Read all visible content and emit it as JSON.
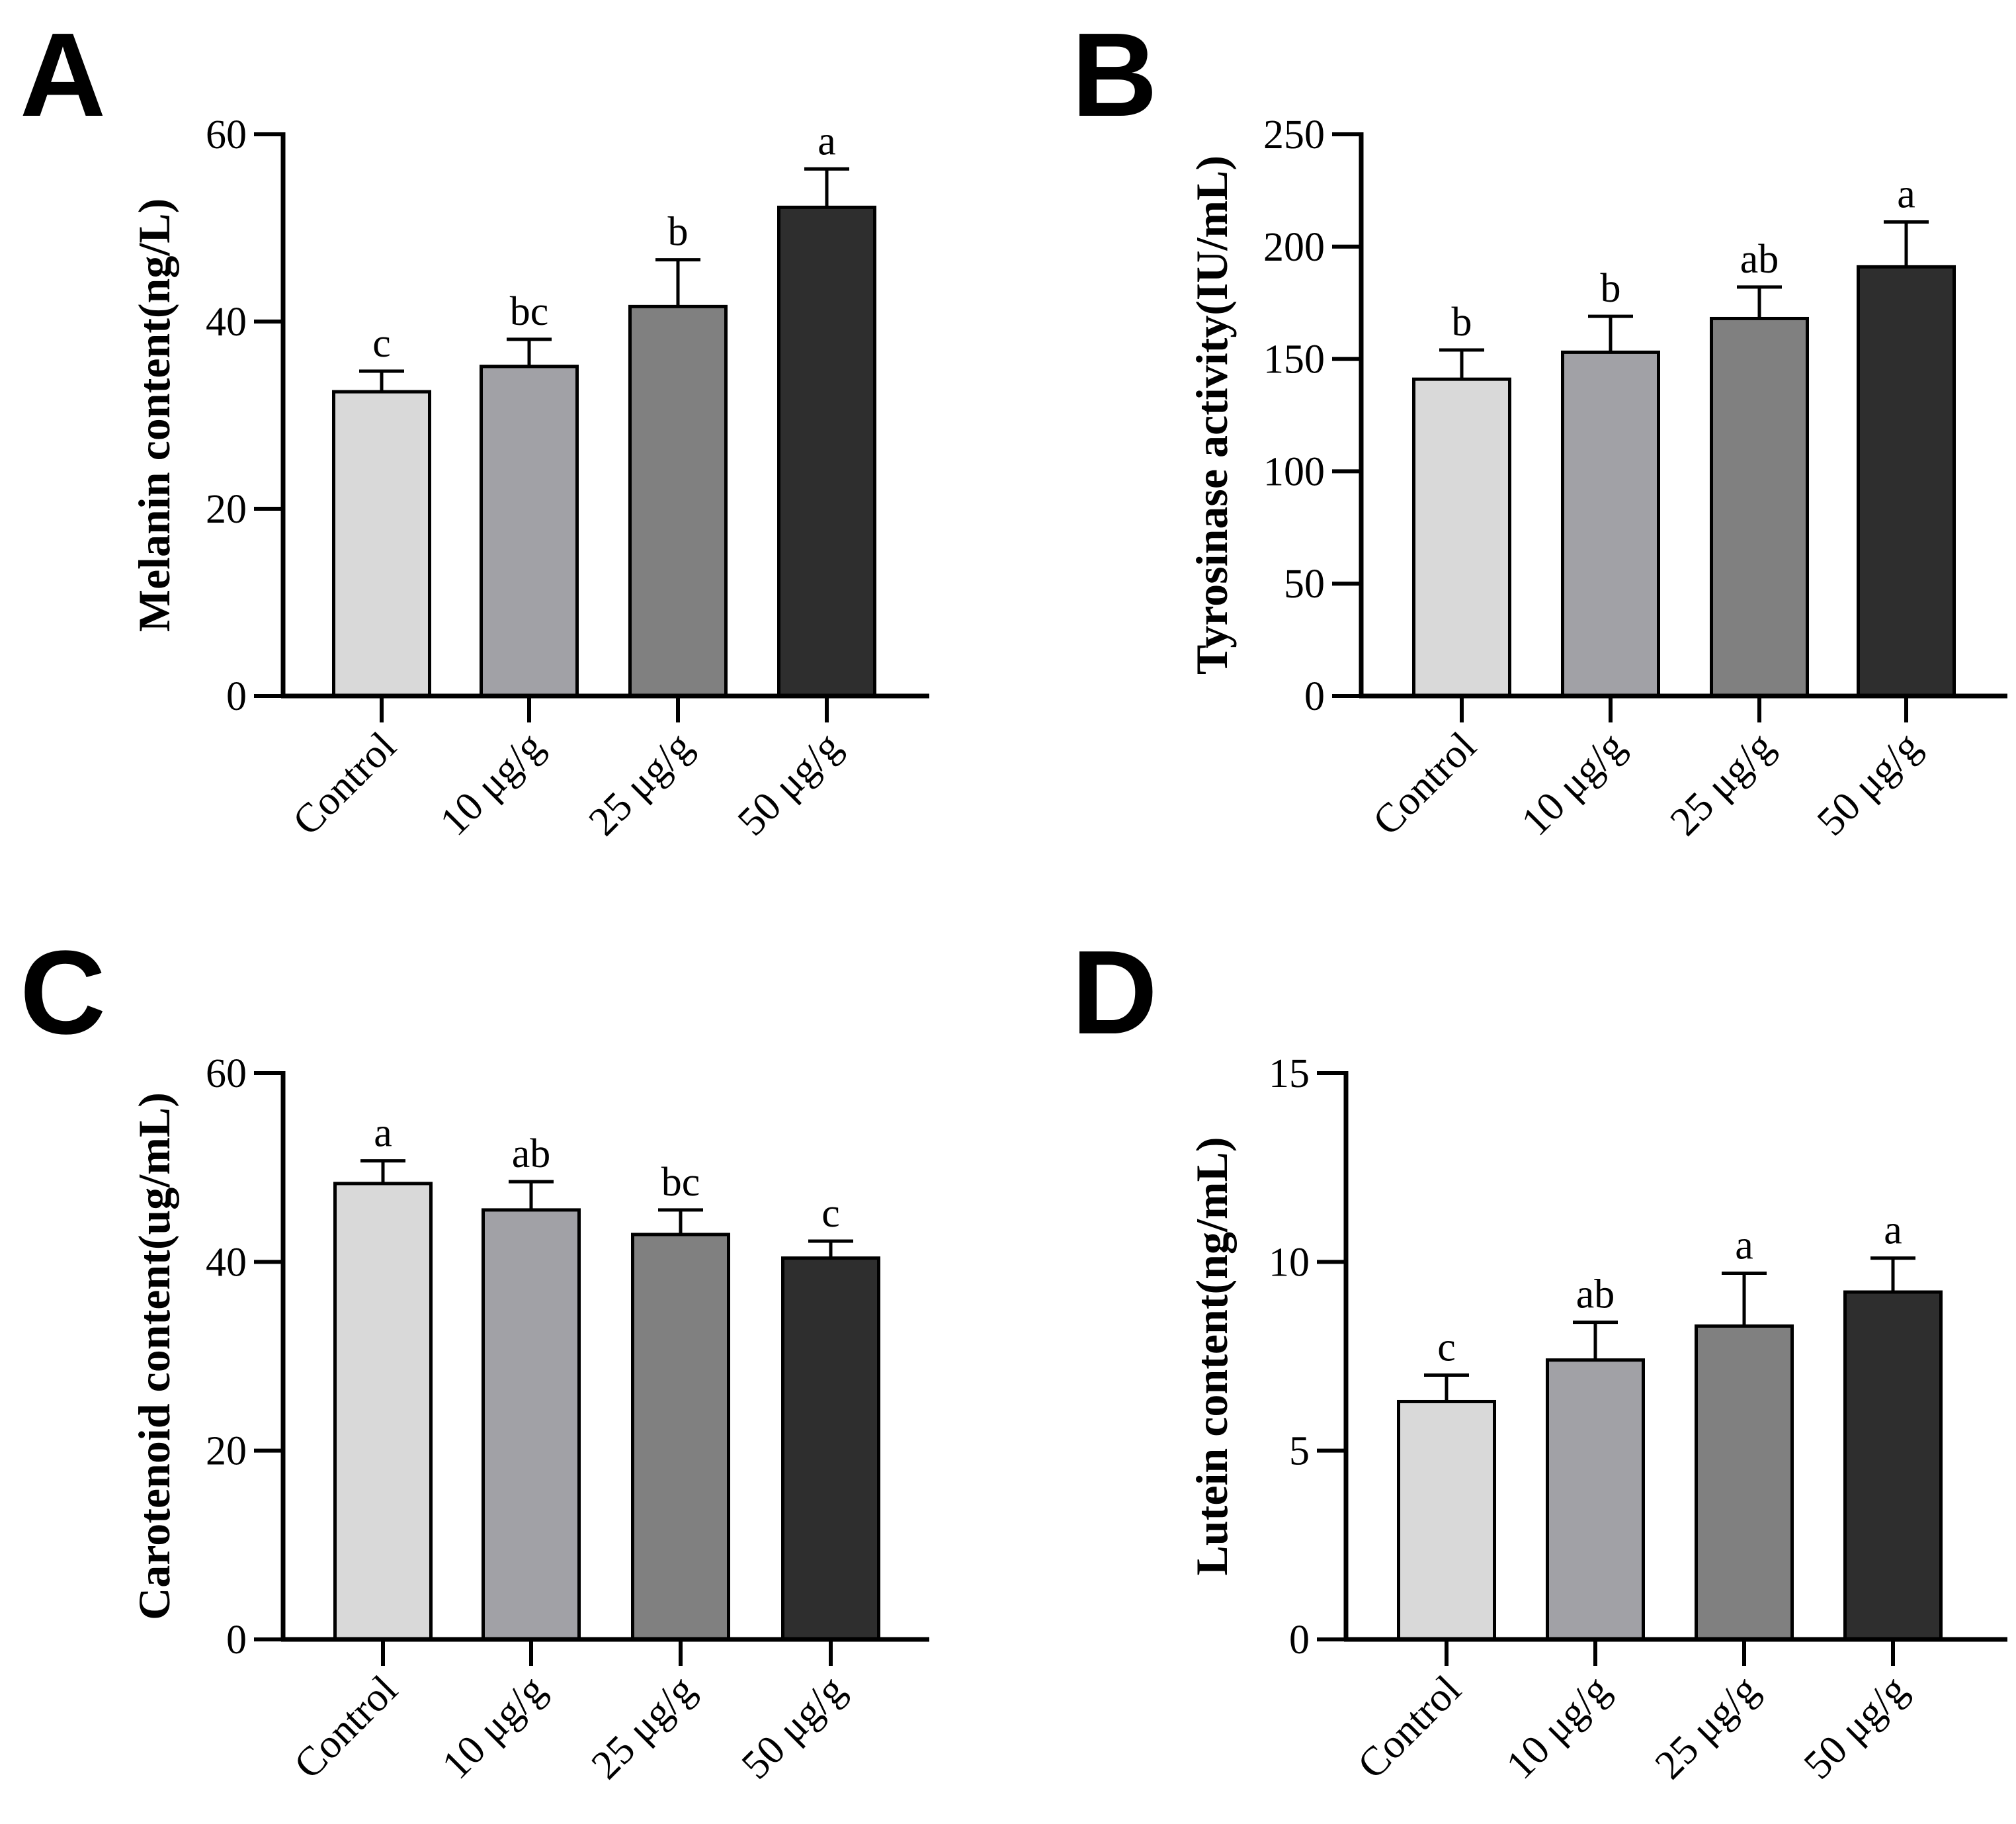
{
  "chart_data": [
    {
      "panel": "A",
      "type": "bar",
      "categories": [
        "Control",
        "10 μg/g",
        "25 μg/g",
        "50 μg/g"
      ],
      "values": [
        32.5,
        35.2,
        41.6,
        52.2
      ],
      "errors": [
        2.2,
        2.9,
        5.0,
        4.1
      ],
      "significance": [
        "c",
        "bc",
        "b",
        "a"
      ],
      "ylabel": "Melanin content(ng/L)",
      "ylim": [
        0,
        60
      ],
      "yticks": [
        0,
        20,
        40,
        60
      ],
      "colors": [
        "#d9d9d9",
        "#a1a1a6",
        "#808080",
        "#2e2e2e"
      ]
    },
    {
      "panel": "B",
      "type": "bar",
      "categories": [
        "Control",
        "10 μg/g",
        "25 μg/g",
        "50 μg/g"
      ],
      "values": [
        141,
        153,
        168,
        191
      ],
      "errors": [
        13,
        16,
        14,
        20
      ],
      "significance": [
        "b",
        "b",
        "ab",
        "a"
      ],
      "ylabel": "Tyrosinase activity(IU/mL)",
      "ylim": [
        0,
        250
      ],
      "yticks": [
        0,
        50,
        100,
        150,
        200,
        250
      ],
      "colors": [
        "#d9d9d9",
        "#a1a1a6",
        "#808080",
        "#2e2e2e"
      ]
    },
    {
      "panel": "C",
      "type": "bar",
      "categories": [
        "Control",
        "10 μg/g",
        "25 μg/g",
        "50 μg/g"
      ],
      "values": [
        48.3,
        45.5,
        42.9,
        40.4
      ],
      "errors": [
        2.4,
        3.0,
        2.6,
        1.8
      ],
      "significance": [
        "a",
        "ab",
        "bc",
        "c"
      ],
      "ylabel": "Carotenoid content(ug/mL)",
      "ylim": [
        0,
        60
      ],
      "yticks": [
        0,
        20,
        40,
        60
      ],
      "colors": [
        "#d9d9d9",
        "#a1a1a6",
        "#808080",
        "#2e2e2e"
      ]
    },
    {
      "panel": "D",
      "type": "bar",
      "categories": [
        "Control",
        "10 μg/g",
        "25 μg/g",
        "50 μg/g"
      ],
      "values": [
        6.3,
        7.4,
        8.3,
        9.2
      ],
      "errors": [
        0.7,
        1.0,
        1.4,
        0.9
      ],
      "significance": [
        "c",
        "ab",
        "a",
        "a"
      ],
      "ylabel": "Lutein content(ng/mL)",
      "ylim": [
        0,
        15
      ],
      "yticks": [
        0,
        5,
        10,
        15
      ],
      "colors": [
        "#d9d9d9",
        "#a1a1a6",
        "#808080",
        "#2e2e2e"
      ]
    }
  ]
}
